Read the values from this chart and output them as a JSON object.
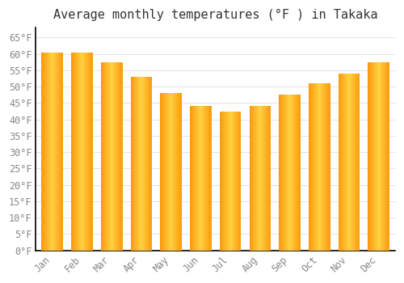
{
  "title": "Average monthly temperatures (°F ) in Takaka",
  "months": [
    "Jan",
    "Feb",
    "Mar",
    "Apr",
    "May",
    "Jun",
    "Jul",
    "Aug",
    "Sep",
    "Oct",
    "Nov",
    "Dec"
  ],
  "values": [
    60.5,
    60.5,
    57.5,
    53.0,
    48.0,
    44.0,
    42.5,
    44.0,
    47.5,
    51.0,
    54.0,
    57.5
  ],
  "bar_color_main": "#FFAB00",
  "bar_color_light": "#FFD060",
  "background_color": "#FFFFFF",
  "grid_color": "#DDDDDD",
  "yticks": [
    0,
    5,
    10,
    15,
    20,
    25,
    30,
    35,
    40,
    45,
    50,
    55,
    60,
    65
  ],
  "ylim": [
    0,
    68
  ],
  "title_fontsize": 11,
  "tick_fontsize": 8.5,
  "font_family": "monospace"
}
